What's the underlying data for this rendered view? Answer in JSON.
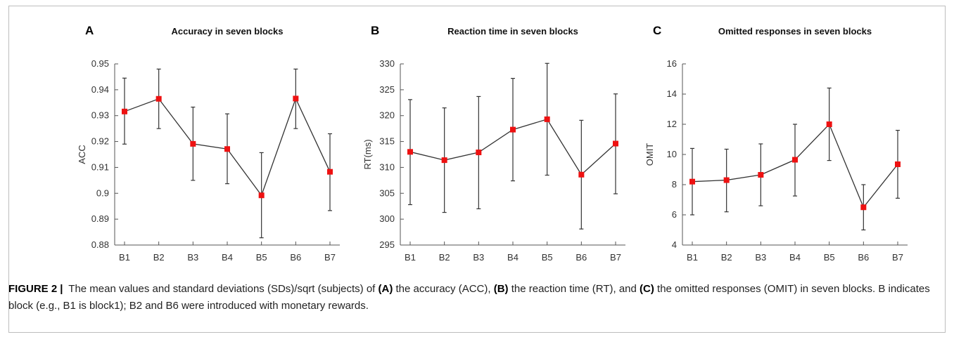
{
  "chart_data": [
    {
      "type": "line",
      "panel_letter": "A",
      "title": "Accuracy in seven blocks",
      "ylabel": "ACC",
      "xlabel": "",
      "categories": [
        "B1",
        "B2",
        "B3",
        "B4",
        "B5",
        "B6",
        "B7"
      ],
      "ylim": [
        0.88,
        0.95
      ],
      "yticks": [
        0.88,
        0.89,
        0.9,
        0.91,
        0.92,
        0.93,
        0.94,
        0.95
      ],
      "yticklabels": [
        "0.88",
        "0.89",
        "0.9",
        "0.91",
        "0.92",
        "0.93",
        "0.94",
        "0.95"
      ],
      "series": [
        {
          "values": [
            0.9316,
            0.9365,
            0.9191,
            0.9171,
            0.8992,
            0.9366,
            0.9083
          ],
          "error_low": [
            0.919,
            0.925,
            0.905,
            0.9037,
            0.8828,
            0.925,
            0.8933
          ],
          "error_high": [
            0.9445,
            0.948,
            0.9333,
            0.9307,
            0.9157,
            0.948,
            0.923
          ]
        }
      ],
      "marker_color": "#ee1111",
      "line_color": "#333333",
      "grid": false
    },
    {
      "type": "line",
      "panel_letter": "B",
      "title": "Reaction time in seven blocks",
      "ylabel": "RT(ms)",
      "xlabel": "",
      "categories": [
        "B1",
        "B2",
        "B3",
        "B4",
        "B5",
        "B6",
        "B7"
      ],
      "ylim": [
        295,
        330
      ],
      "yticks": [
        295,
        300,
        305,
        310,
        315,
        320,
        325,
        330
      ],
      "yticklabels": [
        "295",
        "300",
        "305",
        "310",
        "315",
        "320",
        "325",
        "330"
      ],
      "series": [
        {
          "values": [
            313,
            311.4,
            312.9,
            317.3,
            319.3,
            308.6,
            314.6
          ],
          "error_low": [
            302.8,
            301.3,
            302.0,
            307.4,
            308.5,
            298.1,
            304.9
          ],
          "error_high": [
            323.1,
            321.5,
            323.7,
            327.2,
            330.1,
            319.1,
            324.2
          ]
        }
      ],
      "marker_color": "#ee1111",
      "line_color": "#333333",
      "grid": false
    },
    {
      "type": "line",
      "panel_letter": "C",
      "title": "Omitted responses in seven blocks",
      "ylabel": "OMIT",
      "xlabel": "",
      "categories": [
        "B1",
        "B2",
        "B3",
        "B4",
        "B5",
        "B6",
        "B7"
      ],
      "ylim": [
        4,
        16
      ],
      "yticks": [
        4,
        6,
        8,
        10,
        12,
        14,
        16
      ],
      "yticklabels": [
        "4",
        "6",
        "8",
        "10",
        "12",
        "14",
        "16"
      ],
      "series": [
        {
          "values": [
            8.2,
            8.3,
            8.65,
            9.65,
            12.0,
            6.5,
            9.35
          ],
          "error_low": [
            6.0,
            6.2,
            6.6,
            7.25,
            9.6,
            5.0,
            7.1
          ],
          "error_high": [
            10.4,
            10.35,
            10.7,
            12.0,
            14.4,
            8.0,
            11.6
          ]
        }
      ],
      "marker_color": "#ee1111",
      "line_color": "#333333",
      "grid": false
    }
  ],
  "caption": {
    "figure_label": "FIGURE 2",
    "separator": "|",
    "t1": "The mean values and standard deviations (SDs)/sqrt (subjects) of",
    "a_label": "(A)",
    "t2": "the accuracy (ACC),",
    "b_label": "(B)",
    "t3": "the reaction time (RT), and",
    "c_label": "(C)",
    "t4": "the omitted responses (OMIT) in seven blocks. B indicates block (e.g., B1 is block1); B2 and B6 were introduced with monetary rewards."
  }
}
